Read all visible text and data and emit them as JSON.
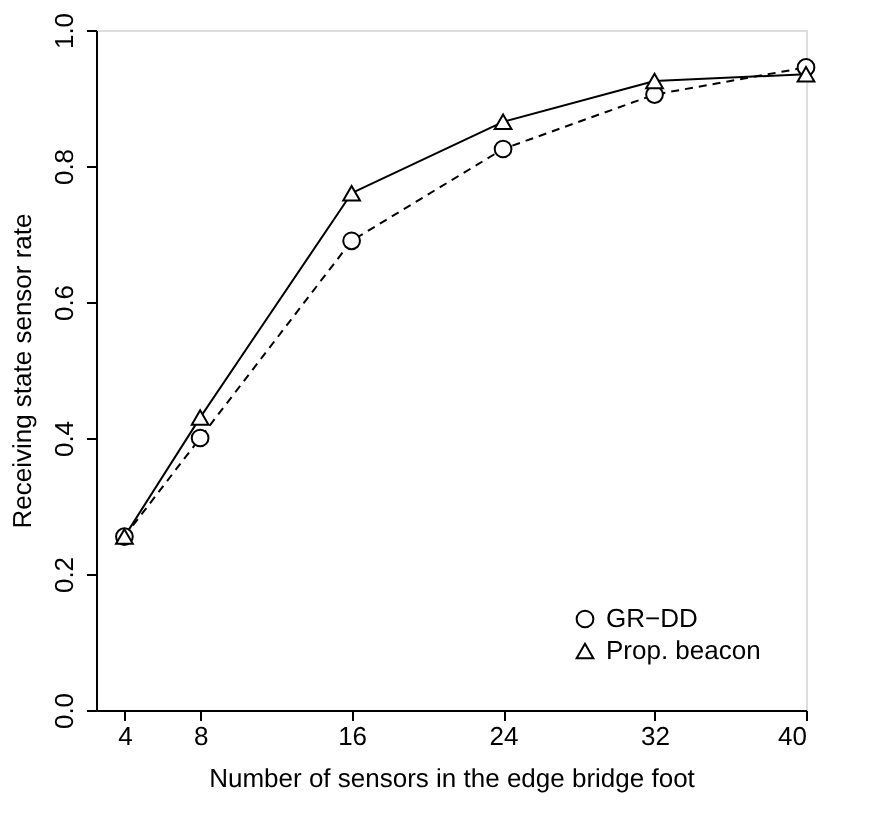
{
  "chart_data": {
    "type": "line",
    "xlabel": "Number of sensors in the edge bridge foot",
    "ylabel": "Receiving state sensor rate",
    "x": [
      4,
      8,
      16,
      24,
      32,
      40
    ],
    "series": [
      {
        "name": "GR−DD",
        "color": "#000000",
        "marker": "circle",
        "line_style": "dashed",
        "values": [
          0.255,
          0.4,
          0.69,
          0.825,
          0.905,
          0.945
        ]
      },
      {
        "name": "Prop. beacon",
        "color": "#000000",
        "marker": "triangle",
        "line_style": "solid",
        "values": [
          0.255,
          0.43,
          0.76,
          0.865,
          0.925,
          0.935
        ]
      }
    ],
    "xlim": [
      2.5,
      40
    ],
    "xticks": [
      4,
      8,
      16,
      24,
      32,
      40
    ],
    "ylim": [
      0,
      1
    ],
    "yticks": [
      {
        "value": 0,
        "label": "0.0"
      },
      0.2,
      0.4,
      0.6,
      0.8,
      {
        "value": 1,
        "label": "1.0"
      }
    ],
    "legend": "bottom right",
    "grid": false
  }
}
